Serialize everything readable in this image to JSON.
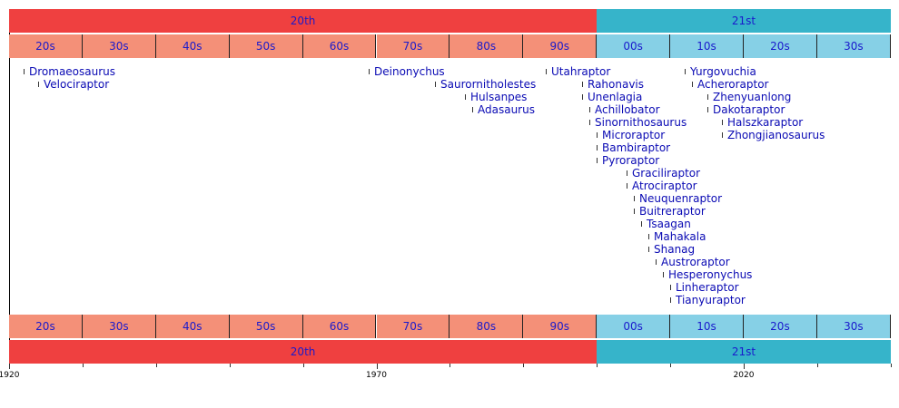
{
  "axis": {
    "start_year": 1920,
    "end_year": 2040,
    "labels": [
      "1920",
      "1970",
      "2020"
    ]
  },
  "centuries": [
    {
      "label": "20th",
      "from": 1920,
      "to": 2000,
      "color": "#ef4040"
    },
    {
      "label": "21st",
      "from": 2000,
      "to": 2040,
      "color": "#36b4ca"
    }
  ],
  "decades": [
    {
      "label": "20s",
      "from": 1920,
      "color": "#f49078"
    },
    {
      "label": "30s",
      "from": 1930,
      "color": "#f49078"
    },
    {
      "label": "40s",
      "from": 1940,
      "color": "#f49078"
    },
    {
      "label": "50s",
      "from": 1950,
      "color": "#f49078"
    },
    {
      "label": "60s",
      "from": 1960,
      "color": "#f49078"
    },
    {
      "label": "70s",
      "from": 1970,
      "color": "#f49078"
    },
    {
      "label": "80s",
      "from": 1980,
      "color": "#f49078"
    },
    {
      "label": "90s",
      "from": 1990,
      "color": "#f49078"
    },
    {
      "label": "00s",
      "from": 2000,
      "color": "#86d0e6"
    },
    {
      "label": "10s",
      "from": 2010,
      "color": "#86d0e6"
    },
    {
      "label": "20s",
      "from": 2020,
      "color": "#86d0e6"
    },
    {
      "label": "30s",
      "from": 2030,
      "color": "#86d0e6"
    }
  ],
  "entries": [
    {
      "name": "Dromaeosaurus",
      "year": 1922
    },
    {
      "name": "Velociraptor",
      "year": 1924
    },
    {
      "name": "Deinonychus",
      "year": 1969
    },
    {
      "name": "Saurornitholestes",
      "year": 1978
    },
    {
      "name": "Hulsanpes",
      "year": 1982
    },
    {
      "name": "Adasaurus",
      "year": 1983
    },
    {
      "name": "Utahraptor",
      "year": 1993
    },
    {
      "name": "Rahonavis",
      "year": 1998
    },
    {
      "name": "Unenlagia",
      "year": 1998
    },
    {
      "name": "Achillobator",
      "year": 1999
    },
    {
      "name": "Sinornithosaurus",
      "year": 1999
    },
    {
      "name": "Microraptor",
      "year": 2000
    },
    {
      "name": "Bambiraptor",
      "year": 2000
    },
    {
      "name": "Pyroraptor",
      "year": 2000
    },
    {
      "name": "Graciliraptor",
      "year": 2004
    },
    {
      "name": "Atrociraptor",
      "year": 2004
    },
    {
      "name": "Neuquenraptor",
      "year": 2005
    },
    {
      "name": "Buitreraptor",
      "year": 2005
    },
    {
      "name": "Tsaagan",
      "year": 2006
    },
    {
      "name": "Mahakala",
      "year": 2007
    },
    {
      "name": "Shanag",
      "year": 2007
    },
    {
      "name": "Austroraptor",
      "year": 2008
    },
    {
      "name": "Hesperonychus",
      "year": 2009
    },
    {
      "name": "Linheraptor",
      "year": 2010
    },
    {
      "name": "Tianyuraptor",
      "year": 2010
    },
    {
      "name": "Yurgovuchia",
      "year": 2012
    },
    {
      "name": "Acheroraptor",
      "year": 2013
    },
    {
      "name": "Zhenyuanlong",
      "year": 2015
    },
    {
      "name": "Dakotaraptor",
      "year": 2015
    },
    {
      "name": "Halszkaraptor",
      "year": 2017
    },
    {
      "name": "Zhongjianosaurus",
      "year": 2017
    }
  ]
}
